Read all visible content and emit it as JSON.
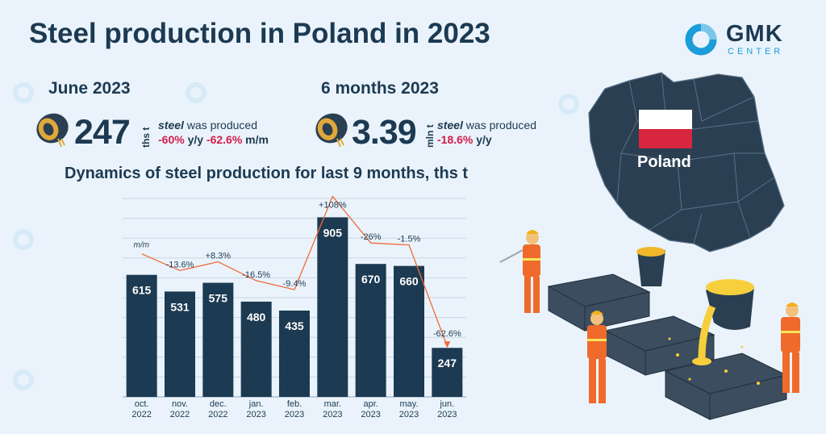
{
  "title": "Steel production in Poland in 2023",
  "logo": {
    "word": "GMK",
    "sub": "CENTER"
  },
  "kpis": [
    {
      "heading": "June 2023",
      "value": "247",
      "unit": "ths t",
      "label_em": "steel",
      "label_rest": " was produced",
      "change1": "-60%",
      "change1_unit": " y/y ",
      "change2": "-62.6%",
      "change2_unit": " m/m"
    },
    {
      "heading": "6 months 2023",
      "value": "3.39",
      "unit": "mln t",
      "label_em": "steel",
      "label_rest": " was produced",
      "change1": "-18.6%",
      "change1_unit": " y/y"
    }
  ],
  "map_label": "Poland",
  "colors": {
    "bar": "#1c3a52",
    "line": "#ef6a3a",
    "accent": "#1b9dd9",
    "negative": "#d21d4a",
    "flag_red": "#d7263d"
  },
  "chart_data": {
    "type": "bar",
    "title": "Dynamics of steel production for last 9 months, ths t",
    "categories": [
      "oct.\n2022",
      "nov.\n2022",
      "dec.\n2022",
      "jan.\n2023",
      "feb.\n2023",
      "mar.\n2023",
      "apr.\n2023",
      "may.\n2023",
      "jun.\n2023"
    ],
    "values": [
      615,
      531,
      575,
      480,
      435,
      905,
      670,
      660,
      247
    ],
    "change_label_header": "m/m",
    "change_labels": [
      "",
      "-13.6%",
      "+8.3%",
      "-16.5%",
      "-9.4%",
      "+108%",
      "-26%",
      "-1.5%",
      "-62.6%"
    ],
    "ylim": [
      0,
      1000
    ],
    "grid": true,
    "overlay_line": "m/m change trend"
  }
}
